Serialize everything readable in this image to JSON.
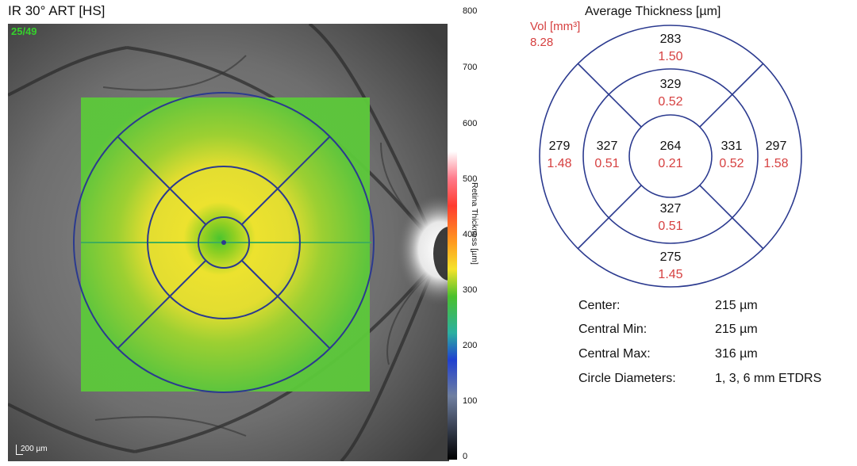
{
  "left_panel": {
    "title": "IR 30° ART [HS]",
    "counter": "25/49",
    "scale": "200 µm"
  },
  "colorbar": {
    "label": "Retina Thickness [µm]",
    "ticks": [
      "800",
      "700",
      "600",
      "500",
      "400",
      "300",
      "200",
      "100",
      "0"
    ]
  },
  "etdrs": {
    "title": "Average Thickness [µm]",
    "vol_label": "Vol [mm³]",
    "vol_total": "8.28",
    "center": {
      "thickness": "264",
      "volume": "0.21"
    },
    "inner_superior": {
      "thickness": "329",
      "volume": "0.52"
    },
    "inner_nasal": {
      "thickness": "331",
      "volume": "0.52"
    },
    "inner_inferior": {
      "thickness": "327",
      "volume": "0.51"
    },
    "inner_temporal": {
      "thickness": "327",
      "volume": "0.51"
    },
    "outer_superior": {
      "thickness": "283",
      "volume": "1.50"
    },
    "outer_nasal": {
      "thickness": "297",
      "volume": "1.58"
    },
    "outer_inferior": {
      "thickness": "275",
      "volume": "1.45"
    },
    "outer_temporal": {
      "thickness": "279",
      "volume": "1.48"
    }
  },
  "stats": [
    {
      "label": "Center:",
      "value": "215 µm"
    },
    {
      "label": "Central Min:",
      "value": "215 µm"
    },
    {
      "label": "Central Max:",
      "value": "316 µm"
    },
    {
      "label": "Circle Diameters:",
      "value": "1, 3, 6 mm ETDRS"
    }
  ],
  "colors": {
    "grid_blue": "#2b3a8f",
    "volume_red": "#d64040"
  }
}
